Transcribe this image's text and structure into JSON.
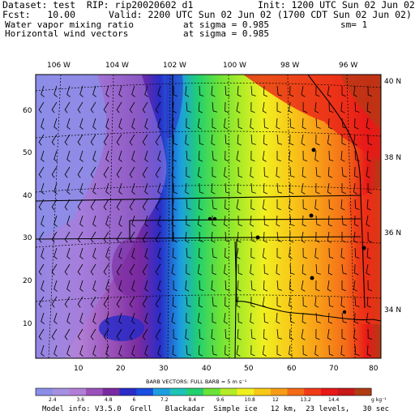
{
  "header": {
    "dataset": "Dataset: test  RIP: rip20020602 d1",
    "init": "Init: 1200 UTC Sun 02 Jun 02",
    "fcst": "Fcst:   10.00",
    "valid": "Valid: 2200 UTC Sun 02 Jun 02 (1700 CDT Sun 02 Jun 02)",
    "field1_name": "Water vapor mixing ratio",
    "field1_level": "at sigma = 0.985",
    "field1_unit": "sm= 1",
    "field2_name": "Horizontal wind vectors",
    "field2_level": "at sigma = 0.985"
  },
  "map": {
    "lon_labels": [
      "106 W",
      "104 W",
      "102 W",
      "100 W",
      "98 W",
      "96 W"
    ],
    "lat_labels": [
      "40 N",
      "38 N",
      "36 N",
      "34 N"
    ],
    "left_ticks": [
      "60",
      "50",
      "40",
      "30",
      "20",
      "10"
    ],
    "bottom_ticks": [
      "10",
      "20",
      "30",
      "40",
      "50",
      "60",
      "70",
      "80"
    ],
    "shading": "moisture increasing from purple (west) to red (east)"
  },
  "barbs_caption": "BARB VECTORS:  FULL BARB = 5 m s⁻¹",
  "colorbar": {
    "labels": [
      "2.4",
      "3.6",
      "4.8",
      "6",
      "7.2",
      "8.4",
      "9.6",
      "10.8",
      "12",
      "13.2",
      "14.4"
    ],
    "unit": "g kg⁻¹",
    "colors": [
      "#8a8ee8",
      "#a690e0",
      "#b27ed6",
      "#9a52b8",
      "#7a2aa0",
      "#2a2cc8",
      "#1a4de0",
      "#1c9ee0",
      "#1ec3b8",
      "#22d070",
      "#6ae238",
      "#b4ec26",
      "#f0f020",
      "#f8c818",
      "#f89c18",
      "#f46a18",
      "#f03a18",
      "#e81818",
      "#c81818",
      "#b03c14"
    ]
  },
  "footer": "Model info: V3.5.0  Grell   Blackadar  Simple ice   12 km,  23 levels,   30 sec"
}
